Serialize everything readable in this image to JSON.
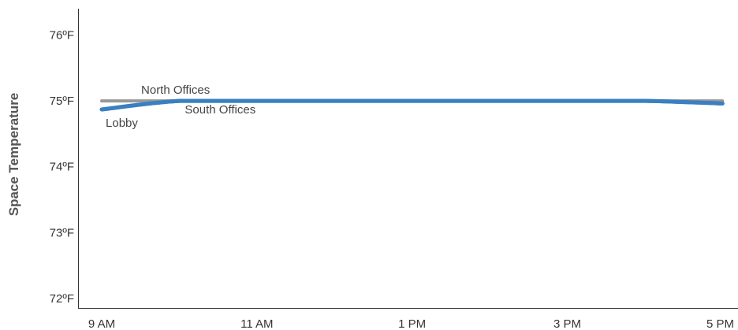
{
  "chart_data": {
    "type": "line",
    "title": "",
    "xlabel": "",
    "ylabel": "Space Temperature",
    "x": [
      9,
      10,
      11,
      12,
      13,
      14,
      15,
      16,
      17
    ],
    "xticks": [
      {
        "value": 9,
        "label": "9 AM"
      },
      {
        "value": 11,
        "label": "11 AM"
      },
      {
        "value": 13,
        "label": "1 PM"
      },
      {
        "value": 15,
        "label": "3 PM"
      },
      {
        "value": 17,
        "label": "5 PM"
      }
    ],
    "yticks": [
      {
        "value": 72,
        "label": "72ºF"
      },
      {
        "value": 73,
        "label": "73ºF"
      },
      {
        "value": 74,
        "label": "74ºF"
      },
      {
        "value": 75,
        "label": "75ºF"
      },
      {
        "value": 76,
        "label": "76ºF"
      }
    ],
    "xlim": [
      8.7,
      17.2
    ],
    "ylim": [
      71.85,
      76.4
    ],
    "grid": false,
    "legend": "none",
    "series": [
      {
        "name": "North Offices",
        "color": "#999999",
        "values": [
          75.0,
          75.0,
          75.0,
          75.0,
          75.0,
          75.0,
          75.0,
          75.0,
          75.0
        ]
      },
      {
        "name": "South Offices",
        "color": "#3a7fc1",
        "values": [
          74.87,
          75.0,
          75.0,
          75.0,
          75.0,
          75.0,
          75.0,
          75.0,
          74.96
        ]
      },
      {
        "name": "Lobby",
        "color": "#3a7fc1",
        "values": [
          74.87,
          75.0,
          75.0,
          75.0,
          75.0,
          75.0,
          75.0,
          75.0,
          74.96
        ]
      }
    ]
  }
}
